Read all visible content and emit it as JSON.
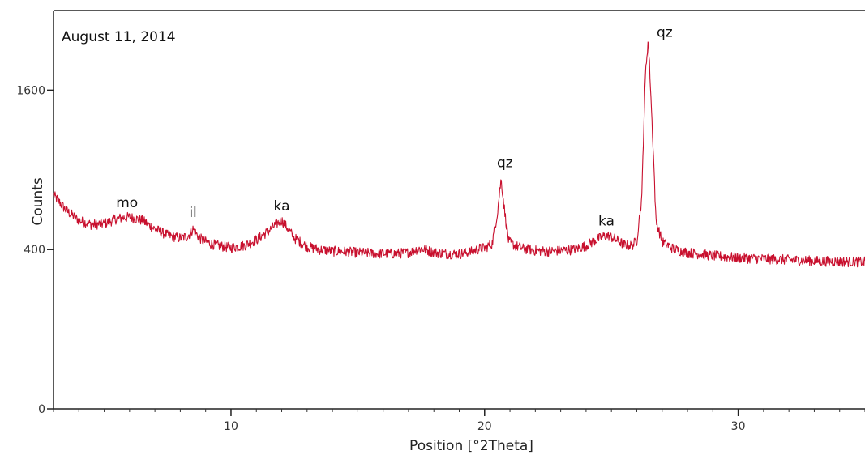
{
  "chart_data": {
    "type": "line",
    "date_label": "August 11, 2014",
    "xlabel": "Position [°2Theta]",
    "ylabel": "Counts",
    "xlim": [
      3,
      35
    ],
    "ylim": [
      0,
      2500
    ],
    "x_ticks": [
      10,
      20,
      30
    ],
    "y_ticks": [
      0,
      400,
      1600
    ],
    "y_scale": "sqrt",
    "grid": false,
    "color": "#c8102e",
    "series": [
      {
        "x": [
          3.0,
          3.5,
          4.0,
          4.5,
          5.0,
          5.5,
          6.0,
          6.5,
          7.0,
          7.5,
          8.0,
          8.3,
          8.5,
          8.7,
          8.9,
          9.2,
          9.5,
          10.0,
          10.5,
          11.0,
          11.5,
          11.8,
          12.0,
          12.2,
          12.5,
          13.0,
          13.5,
          14.0,
          14.5,
          15.0,
          15.5,
          16.0,
          16.5,
          17.0,
          17.3,
          17.5,
          17.7,
          18.0,
          18.5,
          19.0,
          19.5,
          19.8,
          20.0,
          20.3,
          20.5,
          20.65,
          20.8,
          20.95,
          21.2,
          21.5,
          22.0,
          22.5,
          23.0,
          23.5,
          24.0,
          24.4,
          24.7,
          24.9,
          25.2,
          25.5,
          25.8,
          26.0,
          26.2,
          26.35,
          26.45,
          26.6,
          26.75,
          27.0,
          27.5,
          28.0,
          29.0,
          30.0,
          31.0,
          32.0,
          33.0,
          34.0,
          35.0
        ],
        "y": [
          720,
          620,
          560,
          535,
          540,
          570,
          580,
          560,
          510,
          475,
          460,
          470,
          510,
          470,
          445,
          430,
          420,
          410,
          420,
          450,
          500,
          540,
          560,
          520,
          460,
          415,
          400,
          392,
          390,
          385,
          382,
          380,
          380,
          385,
          400,
          405,
          398,
          385,
          380,
          378,
          390,
          405,
          408,
          430,
          600,
          830,
          600,
          440,
          420,
          405,
          395,
          392,
          395,
          400,
          420,
          450,
          470,
          472,
          450,
          425,
          420,
          445,
          700,
          1800,
          2150,
          1300,
          560,
          440,
          400,
          385,
          370,
          360,
          355,
          350,
          345,
          342,
          340
        ]
      }
    ],
    "annotations": [
      {
        "text": "mo",
        "x": 5.9,
        "y": 640
      },
      {
        "text": "il",
        "x": 8.5,
        "y": 580
      },
      {
        "text": "ka",
        "x": 12.0,
        "y": 620
      },
      {
        "text": "qz",
        "x": 20.8,
        "y": 920
      },
      {
        "text": "ka",
        "x": 24.8,
        "y": 530
      },
      {
        "text": "qz",
        "x": 27.1,
        "y": 2180
      }
    ]
  }
}
